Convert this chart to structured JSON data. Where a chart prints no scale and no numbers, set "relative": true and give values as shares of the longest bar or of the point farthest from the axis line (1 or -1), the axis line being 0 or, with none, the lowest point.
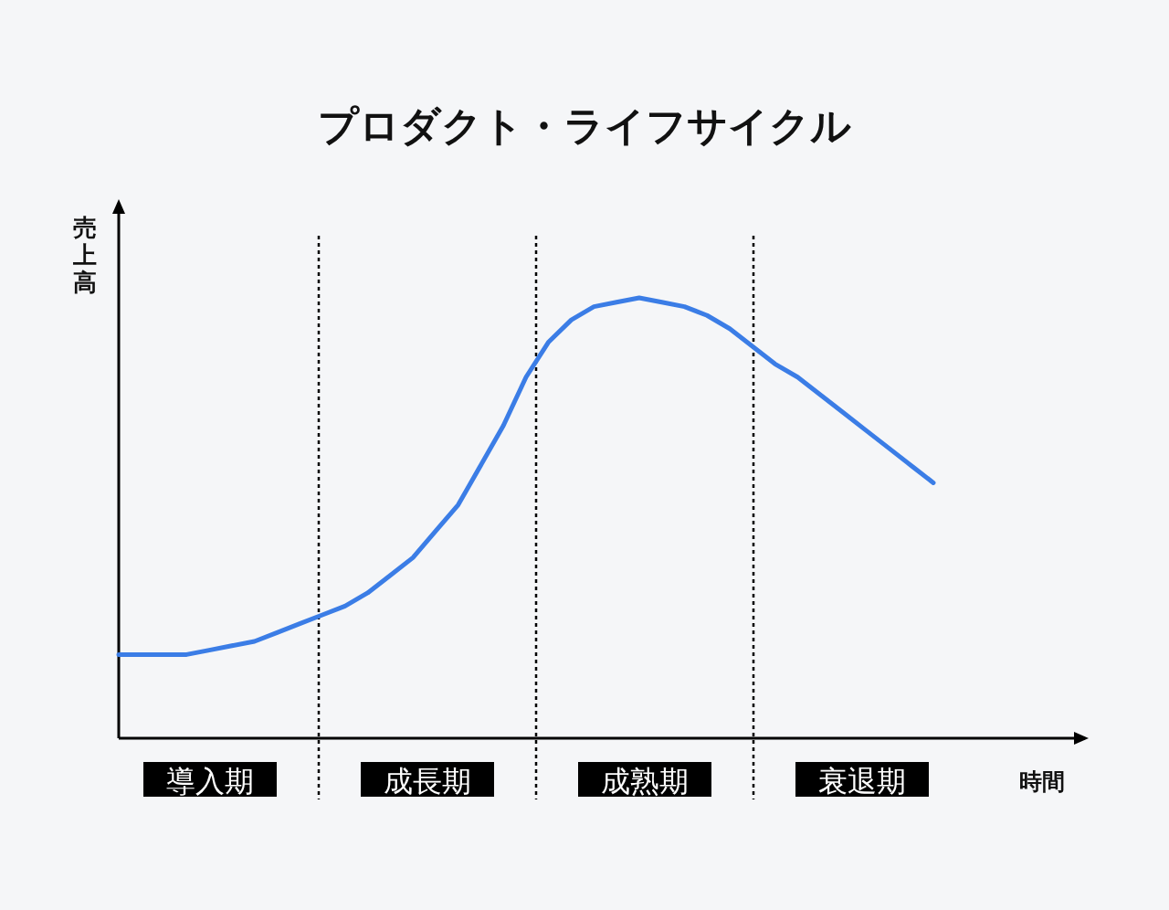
{
  "chart_data": {
    "type": "line",
    "title": "プロダクト・ライフサイクル",
    "xlabel": "時間",
    "ylabel": "売上高",
    "relative": true,
    "categories": [
      null,
      null,
      null,
      null,
      null,
      null,
      null,
      null,
      null,
      null,
      null,
      null,
      null,
      null,
      null,
      null,
      null,
      null,
      null,
      null,
      null,
      null,
      null,
      null,
      null,
      null,
      null,
      null,
      null,
      null,
      null,
      null,
      null,
      null,
      null,
      null,
      null
    ],
    "series": [
      {
        "color": "#3b7de6",
        "values": [
          0.19,
          0.19,
          0.19,
          0.19,
          0.2,
          0.21,
          0.22,
          0.24,
          0.26,
          0.28,
          0.3,
          0.33,
          0.37,
          0.41,
          0.47,
          0.53,
          0.62,
          0.71,
          0.82,
          0.9,
          0.95,
          0.98,
          0.99,
          1,
          0.99,
          0.98,
          0.96,
          0.93,
          0.89,
          0.85,
          0.82,
          0.78,
          0.74,
          0.7,
          0.66,
          0.62,
          0.58
        ]
      }
    ],
    "annotations": [
      "導入期",
      "成長期",
      "成熟期",
      "衰退期"
    ],
    "line_style": "solid",
    "marker": "none"
  }
}
